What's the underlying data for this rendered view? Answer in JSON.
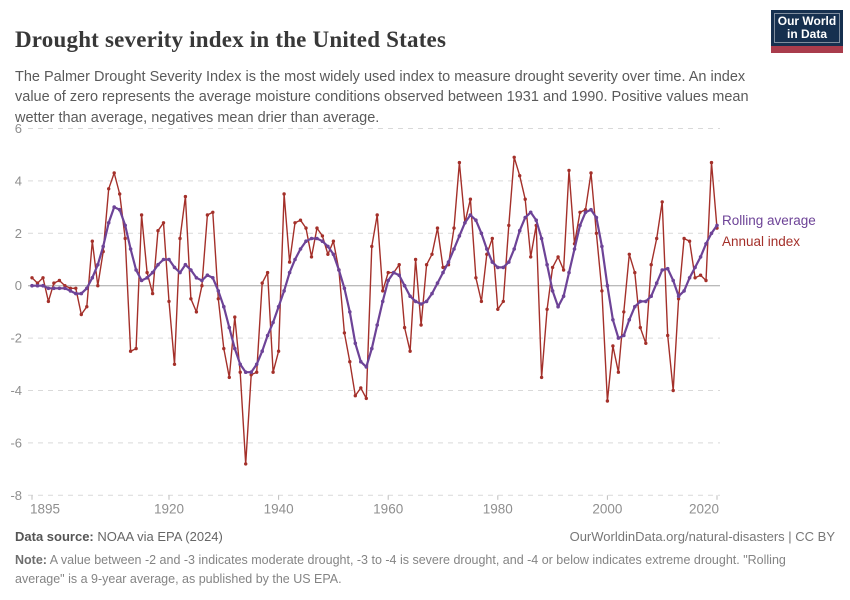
{
  "header": {
    "title": "Drought severity index in the United States",
    "subtitle": "The Palmer Drought Severity Index is the most widely used index to measure drought severity over time. An index value of zero represents the average moisture conditions observed between 1931 and 1990. Positive values mean wetter than average, negatives mean drier than average.",
    "logo": {
      "line1": "Our World",
      "line2": "in Data"
    }
  },
  "legend": {
    "rolling_label": "Rolling average",
    "annual_label": "Annual index"
  },
  "colors": {
    "annual": "#A4302A",
    "rolling": "#6D4397",
    "grid": "#d9d9d9",
    "zero_line": "#a3a3a3",
    "axis_text": "#8f8f8f",
    "logo_bg": "#16304F",
    "logo_stripe": "#A93C4C"
  },
  "chart_data": {
    "type": "line",
    "title": "Drought severity index in the United States",
    "xlabel": "",
    "ylabel": "",
    "ylim": [
      -8,
      6
    ],
    "yticks": [
      6,
      4,
      2,
      0,
      -2,
      -4,
      -6,
      -8
    ],
    "xticks": [
      1895,
      1920,
      1940,
      1960,
      1980,
      2000,
      2020
    ],
    "grid": "horizontal-dashed, solid zero line",
    "legend_position": "right-of-line-ends",
    "x": [
      1895,
      1896,
      1897,
      1898,
      1899,
      1900,
      1901,
      1902,
      1903,
      1904,
      1905,
      1906,
      1907,
      1908,
      1909,
      1910,
      1911,
      1912,
      1913,
      1914,
      1915,
      1916,
      1917,
      1918,
      1919,
      1920,
      1921,
      1922,
      1923,
      1924,
      1925,
      1926,
      1927,
      1928,
      1929,
      1930,
      1931,
      1932,
      1933,
      1934,
      1935,
      1936,
      1937,
      1938,
      1939,
      1940,
      1941,
      1942,
      1943,
      1944,
      1945,
      1946,
      1947,
      1948,
      1949,
      1950,
      1951,
      1952,
      1953,
      1954,
      1955,
      1956,
      1957,
      1958,
      1959,
      1960,
      1961,
      1962,
      1963,
      1964,
      1965,
      1966,
      1967,
      1968,
      1969,
      1970,
      1971,
      1972,
      1973,
      1974,
      1975,
      1976,
      1977,
      1978,
      1979,
      1980,
      1981,
      1982,
      1983,
      1984,
      1985,
      1986,
      1987,
      1988,
      1989,
      1990,
      1991,
      1992,
      1993,
      1994,
      1995,
      1996,
      1997,
      1998,
      1999,
      2000,
      2001,
      2002,
      2003,
      2004,
      2005,
      2006,
      2007,
      2008,
      2009,
      2010,
      2011,
      2012,
      2013,
      2014,
      2015,
      2016,
      2017,
      2018,
      2019,
      2020
    ],
    "series": [
      {
        "name": "Annual index",
        "color": "#A4302A",
        "values": [
          0.3,
          0.1,
          0.3,
          -0.6,
          0.1,
          0.2,
          0.0,
          -0.1,
          -0.1,
          -1.1,
          -0.8,
          1.7,
          0.0,
          1.3,
          3.7,
          4.3,
          3.5,
          1.8,
          -2.5,
          -2.4,
          2.7,
          0.5,
          -0.3,
          2.1,
          2.4,
          -0.6,
          -3.0,
          1.8,
          3.4,
          -0.5,
          -1.0,
          0.0,
          2.7,
          2.8,
          -0.5,
          -2.4,
          -3.5,
          -1.2,
          -3.3,
          -6.8,
          -3.4,
          -3.3,
          0.1,
          0.5,
          -3.3,
          -2.5,
          3.5,
          0.9,
          2.4,
          2.5,
          2.2,
          1.1,
          2.2,
          1.9,
          1.2,
          1.7,
          0.6,
          -1.8,
          -2.9,
          -4.2,
          -3.9,
          -4.3,
          1.5,
          2.7,
          -0.2,
          0.5,
          0.5,
          0.8,
          -1.6,
          -2.5,
          1.0,
          -1.5,
          0.8,
          1.2,
          2.2,
          0.7,
          0.8,
          2.2,
          4.7,
          2.4,
          3.3,
          0.3,
          -0.6,
          1.2,
          1.8,
          -0.9,
          -0.6,
          2.3,
          4.9,
          4.2,
          3.3,
          1.1,
          2.3,
          -3.5,
          -0.9,
          0.7,
          1.1,
          0.6,
          4.4,
          1.6,
          2.8,
          2.9,
          4.3,
          2.0,
          -0.2,
          -4.4,
          -2.3,
          -3.3,
          -1.0,
          1.2,
          0.5,
          -1.6,
          -2.2,
          0.8,
          1.8,
          3.2,
          -1.9,
          -4.0,
          -0.5,
          1.8,
          1.7,
          0.3,
          0.4,
          0.2,
          4.7,
          2.2
        ]
      },
      {
        "name": "Rolling average",
        "color": "#6D4397",
        "values": [
          0.0,
          0.0,
          0.0,
          -0.1,
          -0.1,
          -0.1,
          -0.1,
          -0.2,
          -0.3,
          -0.3,
          -0.1,
          0.3,
          0.8,
          1.5,
          2.4,
          3.0,
          2.9,
          2.3,
          1.4,
          0.6,
          0.2,
          0.3,
          0.5,
          0.8,
          1.0,
          1.0,
          0.7,
          0.5,
          0.8,
          0.6,
          0.3,
          0.2,
          0.4,
          0.3,
          -0.2,
          -0.8,
          -1.6,
          -2.4,
          -3.0,
          -3.3,
          -3.3,
          -3.0,
          -2.5,
          -1.9,
          -1.4,
          -0.8,
          -0.2,
          0.5,
          1.0,
          1.4,
          1.7,
          1.8,
          1.8,
          1.7,
          1.5,
          1.2,
          0.6,
          -0.1,
          -1.0,
          -2.2,
          -2.9,
          -3.1,
          -2.4,
          -1.5,
          -0.6,
          0.2,
          0.5,
          0.4,
          0.0,
          -0.4,
          -0.6,
          -0.7,
          -0.6,
          -0.3,
          0.1,
          0.5,
          0.9,
          1.4,
          1.9,
          2.4,
          2.7,
          2.5,
          2.0,
          1.4,
          0.9,
          0.7,
          0.7,
          0.9,
          1.4,
          2.1,
          2.6,
          2.8,
          2.5,
          1.8,
          0.8,
          -0.2,
          -0.8,
          -0.4,
          0.5,
          1.4,
          2.3,
          2.8,
          2.9,
          2.6,
          1.5,
          0.0,
          -1.3,
          -2.0,
          -1.9,
          -1.3,
          -0.8,
          -0.6,
          -0.6,
          -0.4,
          0.1,
          0.6,
          0.65,
          0.2,
          -0.4,
          -0.2,
          0.3,
          0.7,
          1.1,
          1.6,
          2.0,
          2.3
        ]
      }
    ]
  },
  "footer": {
    "datasource_label": "Data source:",
    "datasource_value": "NOAA via EPA (2024)",
    "citation": "OurWorldinData.org/natural-disasters | CC BY",
    "note_label": "Note:",
    "note_value": "A value between -2 and -3 indicates moderate drought, -3 to -4 is severe drought, and -4 or below indicates extreme drought. \"Rolling average\" is a 9-year average, as published by the US EPA."
  }
}
